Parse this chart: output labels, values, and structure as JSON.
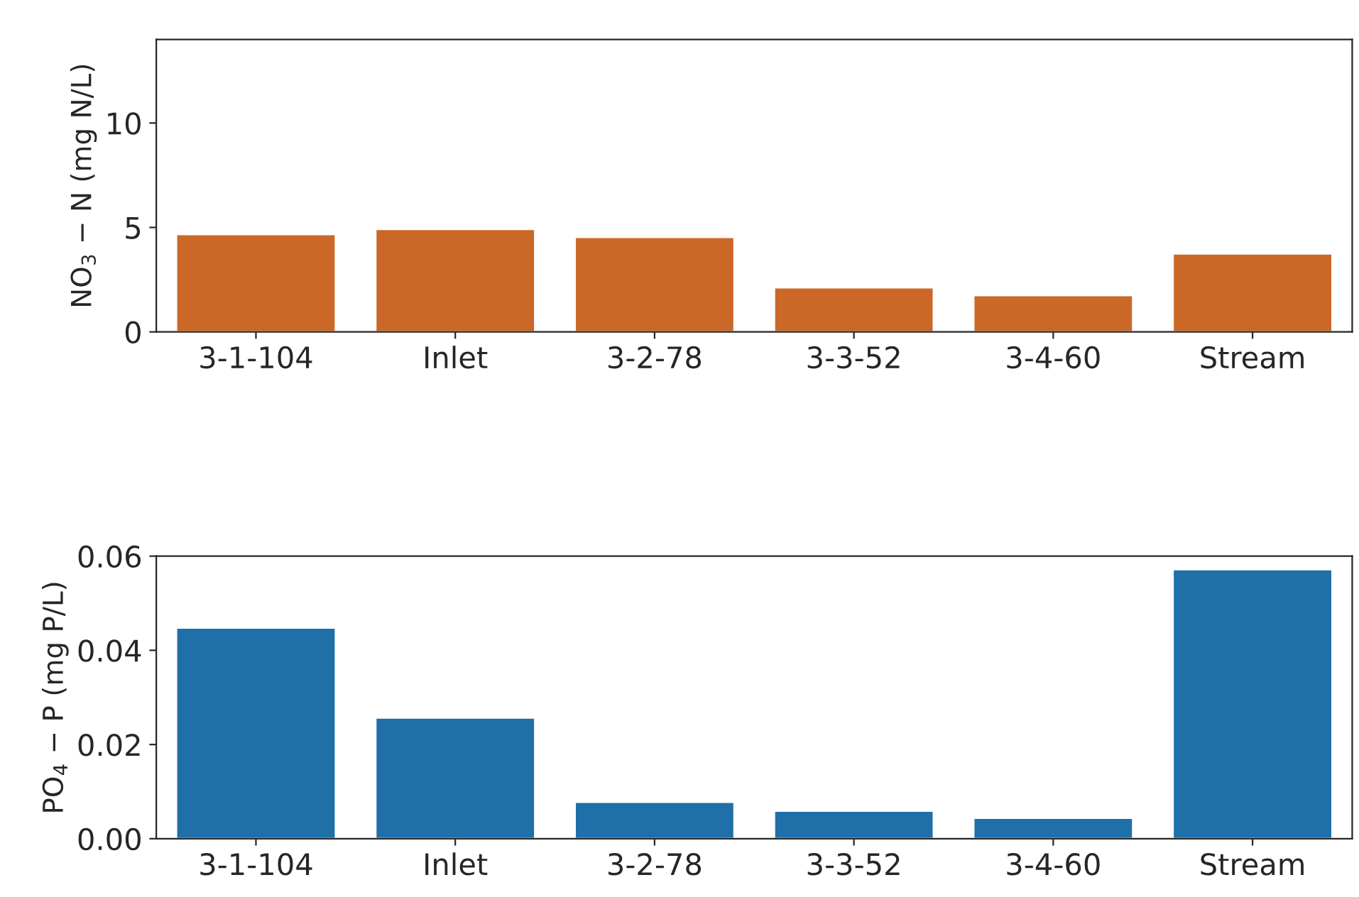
{
  "chart_data": [
    {
      "type": "bar",
      "ylabel": "NO$_{3}$ − N (mg N/L)",
      "categories": [
        "3-1-104",
        "Inlet",
        "3-2-78",
        "3-3-52",
        "3-4-60",
        "Stream"
      ],
      "values": [
        4.67,
        4.92,
        4.54,
        2.13,
        1.75,
        3.75
      ],
      "color": "#cb6828",
      "ylim": [
        0,
        14
      ],
      "yticks": [
        0,
        5,
        10
      ],
      "grid": false,
      "legend": false
    },
    {
      "type": "bar",
      "ylabel": "PO$_{4}$ − P (mg P/L)",
      "categories": [
        "3-1-104",
        "Inlet",
        "3-2-78",
        "3-3-52",
        "3-4-60",
        "Stream"
      ],
      "values": [
        0.0448,
        0.0257,
        0.0078,
        0.0059,
        0.0044,
        0.0572
      ],
      "color": "#1f6fa9",
      "ylim": [
        0,
        0.06
      ],
      "yticks": [
        {
          "value": 0,
          "label": "0.00"
        },
        {
          "value": 0.02,
          "label": "0.02"
        },
        {
          "value": 0.04,
          "label": "0.04"
        },
        {
          "value": 0.06,
          "label": "0.06"
        }
      ],
      "grid": false,
      "legend": false
    }
  ]
}
